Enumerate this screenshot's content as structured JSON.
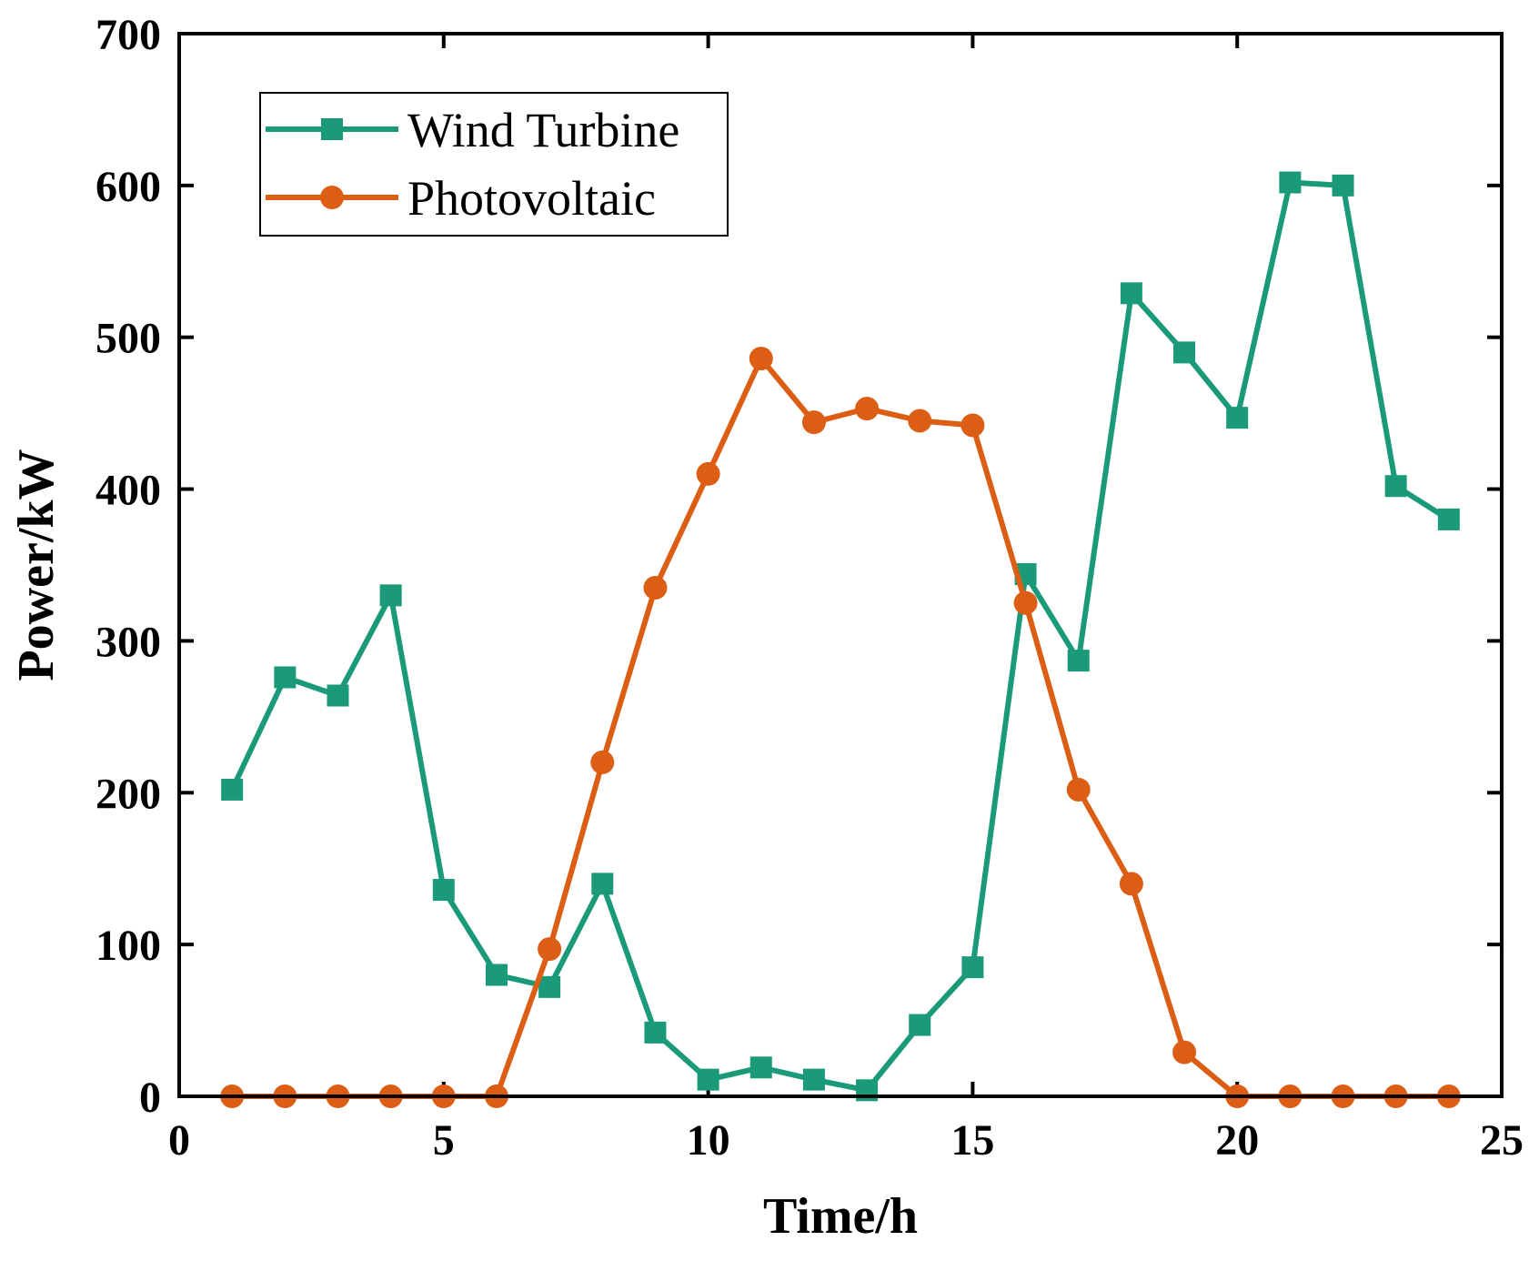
{
  "chart_data": {
    "type": "line",
    "xlabel": "Time/h",
    "ylabel": "Power/kW",
    "xlim": [
      0,
      25
    ],
    "ylim": [
      0,
      700
    ],
    "xticks": [
      0,
      5,
      10,
      15,
      20,
      25
    ],
    "yticks": [
      0,
      100,
      200,
      300,
      400,
      500,
      600,
      700
    ],
    "grid": false,
    "legend_position": "top-left",
    "x": [
      1,
      2,
      3,
      4,
      5,
      6,
      7,
      8,
      9,
      10,
      11,
      12,
      13,
      14,
      15,
      16,
      17,
      18,
      19,
      20,
      21,
      22,
      23,
      24
    ],
    "series": [
      {
        "name": "Wind Turbine",
        "color": "#1a9a78",
        "marker": "square",
        "values": [
          202,
          276,
          264,
          330,
          136,
          80,
          72,
          140,
          42,
          11,
          19,
          11,
          4,
          47,
          85,
          344,
          287,
          529,
          490,
          447,
          602,
          600,
          402,
          380
        ]
      },
      {
        "name": "Photovoltaic",
        "color": "#dc5d14",
        "marker": "circle",
        "values": [
          0,
          0,
          0,
          0,
          0,
          0,
          97,
          220,
          335,
          410,
          486,
          444,
          453,
          445,
          442,
          325,
          202,
          140,
          29,
          0,
          0,
          0,
          0,
          0
        ]
      }
    ]
  }
}
